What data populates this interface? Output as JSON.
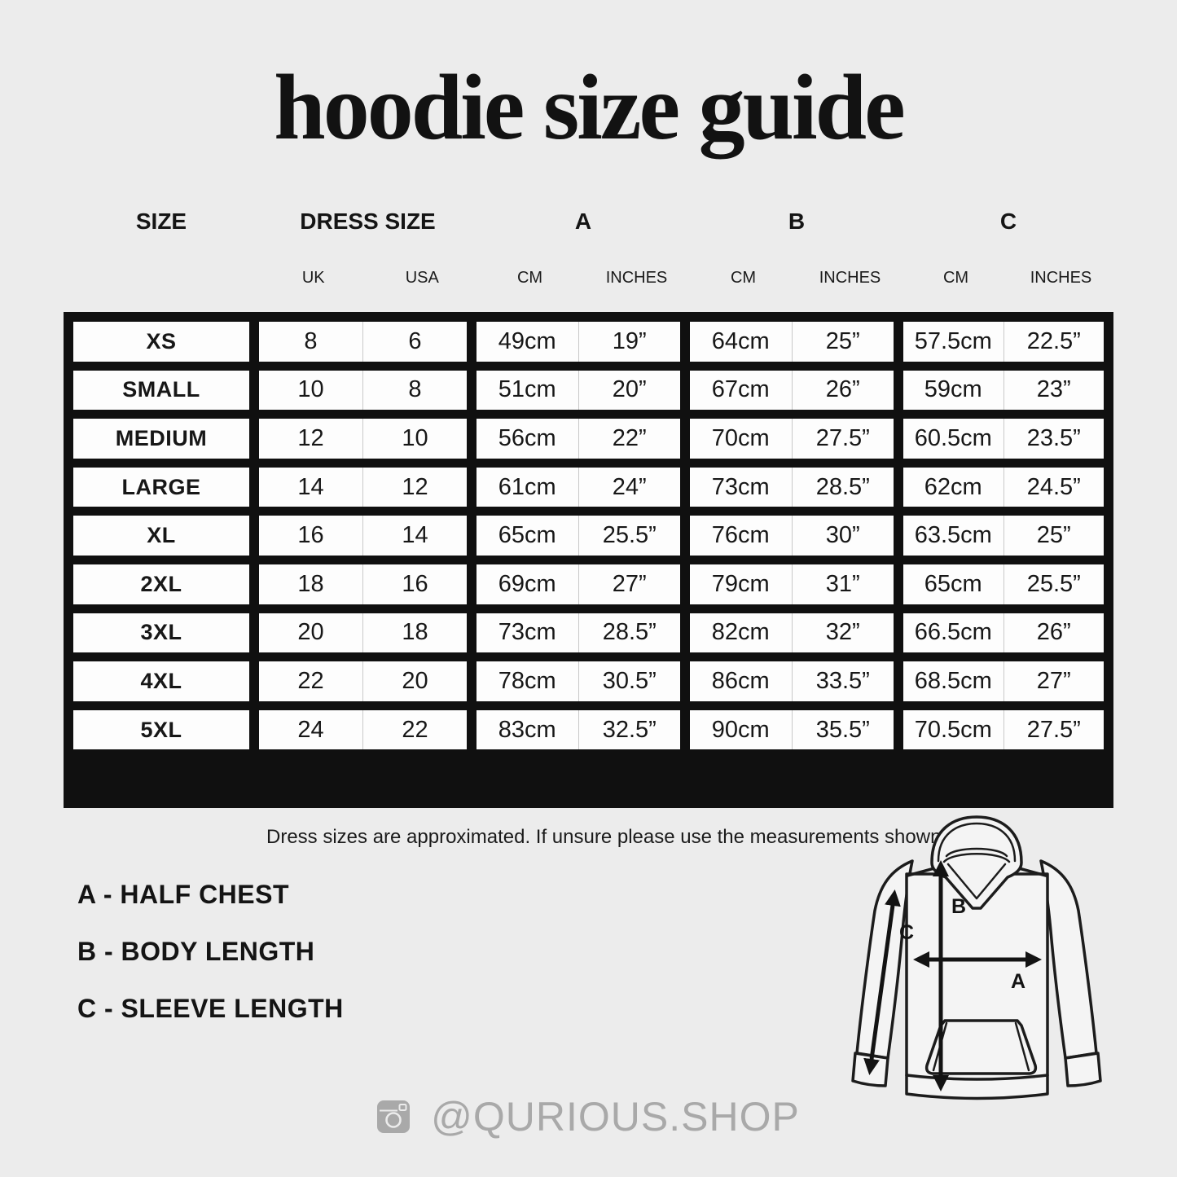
{
  "title": "hoodie size guide",
  "table": {
    "headers": [
      "SIZE",
      "DRESS SIZE",
      "A",
      "B",
      "C"
    ],
    "sub_headers": {
      "dress": [
        "UK",
        "USA"
      ],
      "a": [
        "CM",
        "INCHES"
      ],
      "b": [
        "CM",
        "INCHES"
      ],
      "c": [
        "CM",
        "INCHES"
      ]
    },
    "rows": [
      [
        "XS",
        "8",
        "6",
        "49cm",
        "19”",
        "64cm",
        "25”",
        "57.5cm",
        "22.5”"
      ],
      [
        "SMALL",
        "10",
        "8",
        "51cm",
        "20”",
        "67cm",
        "26”",
        "59cm",
        "23”"
      ],
      [
        "MEDIUM",
        "12",
        "10",
        "56cm",
        "22”",
        "70cm",
        "27.5”",
        "60.5cm",
        "23.5”"
      ],
      [
        "LARGE",
        "14",
        "12",
        "61cm",
        "24”",
        "73cm",
        "28.5”",
        "62cm",
        "24.5”"
      ],
      [
        "XL",
        "16",
        "14",
        "65cm",
        "25.5”",
        "76cm",
        "30”",
        "63.5cm",
        "25”"
      ],
      [
        "2XL",
        "18",
        "16",
        "69cm",
        "27”",
        "79cm",
        "31”",
        "65cm",
        "25.5”"
      ],
      [
        "3XL",
        "20",
        "18",
        "73cm",
        "28.5”",
        "82cm",
        "32”",
        "66.5cm",
        "26”"
      ],
      [
        "4XL",
        "22",
        "20",
        "78cm",
        "30.5”",
        "86cm",
        "33.5”",
        "68.5cm",
        "27”"
      ],
      [
        "5XL",
        "24",
        "22",
        "83cm",
        "32.5”",
        "90cm",
        "35.5”",
        "70.5cm",
        "27.5”"
      ]
    ]
  },
  "note": "Dress sizes are approximated. If unsure please use the measurements shown.",
  "legend": [
    "A - HALF CHEST",
    "B - BODY LENGTH",
    "C - SLEEVE LENGTH"
  ],
  "diagram": {
    "label_a": "A",
    "label_b": "B",
    "label_c": "C"
  },
  "footer": {
    "icon": "instagram-icon",
    "handle": "@QURIOUS.SHOP"
  },
  "colors": {
    "background": "#ececec",
    "table_border": "#101010",
    "cell_bg": "#fdfdfd",
    "cell_divider": "#c9c9c9",
    "footer_text": "#a9a9a9"
  }
}
